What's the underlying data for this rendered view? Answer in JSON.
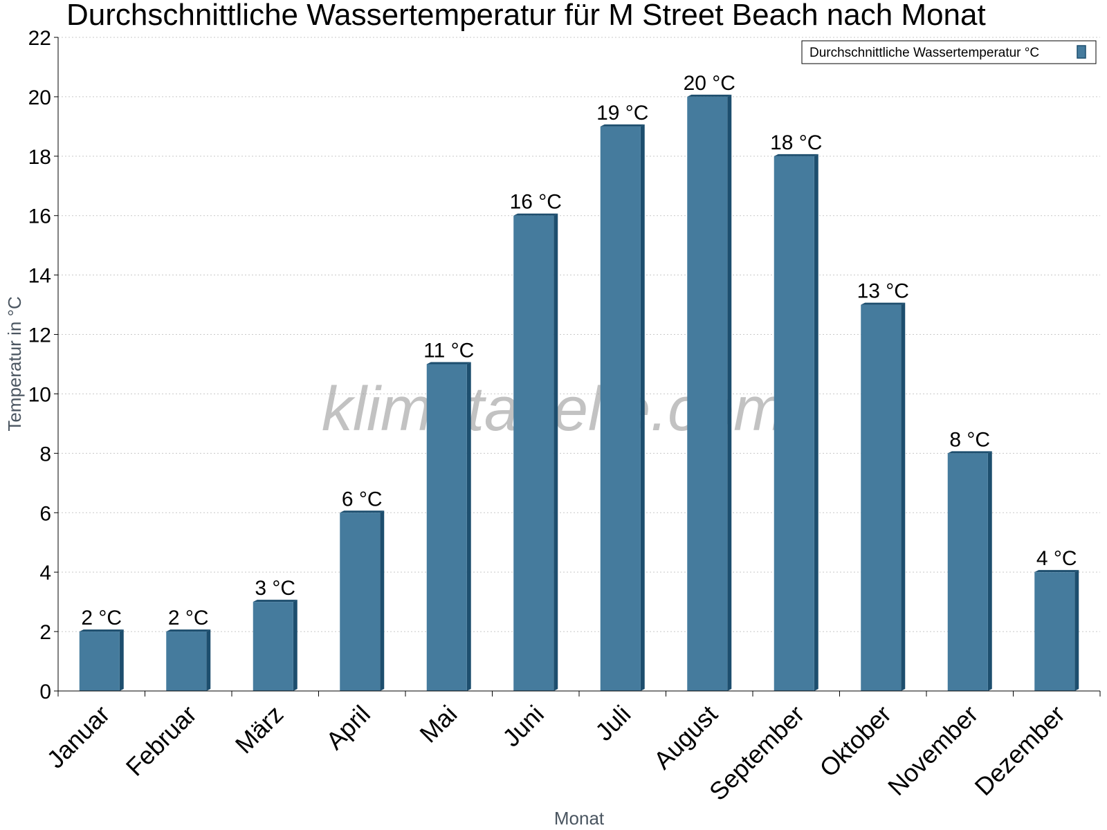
{
  "chart_data": {
    "type": "bar",
    "title": "Durchschnittliche Wassertemperatur für M Street Beach nach Monat",
    "xlabel": "Monat",
    "ylabel": "Temperatur in °C",
    "categories": [
      "Januar",
      "Februar",
      "März",
      "April",
      "Mai",
      "Juni",
      "Juli",
      "August",
      "September",
      "Oktober",
      "November",
      "Dezember"
    ],
    "series": [
      {
        "name": "Durchschnittliche Wassertemperatur °C",
        "values": [
          2,
          2,
          3,
          6,
          11,
          16,
          19,
          20,
          18,
          13,
          8,
          4
        ],
        "data_labels": [
          "2 °C",
          "2 °C",
          "3 °C",
          "6 °C",
          "11 °C",
          "16 °C",
          "19 °C",
          "20 °C",
          "18 °C",
          "13 °C",
          "8 °C",
          "4 °C"
        ],
        "color": "#457b9d",
        "shade_color": "#1d4e6e"
      }
    ],
    "ylim": [
      0,
      22
    ],
    "yticks": [
      0,
      2,
      4,
      6,
      8,
      10,
      12,
      14,
      16,
      18,
      20,
      22
    ],
    "grid": true,
    "legend": "top-right"
  },
  "watermark": "klimatabelle.com"
}
